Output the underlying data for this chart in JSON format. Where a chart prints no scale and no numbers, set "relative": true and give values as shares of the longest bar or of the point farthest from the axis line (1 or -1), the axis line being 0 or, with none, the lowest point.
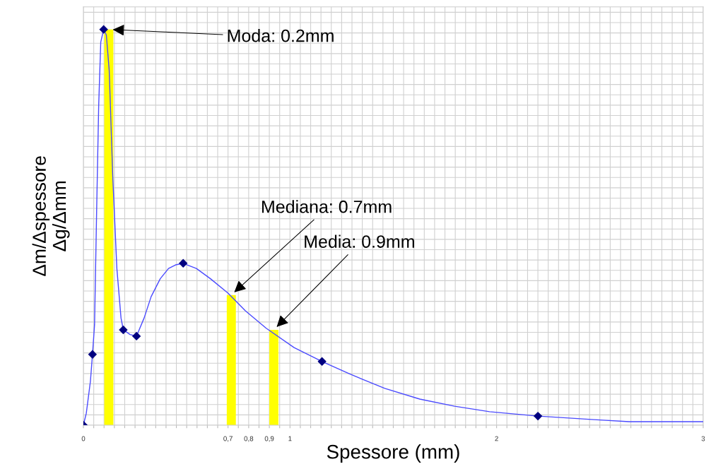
{
  "chart_data": {
    "type": "line",
    "xlabel": "Spessore (mm)",
    "ylabel": "Δm/Δspessore\nΔg/Δmm",
    "relative": true,
    "grid": true,
    "legend": false,
    "xlim": [
      0,
      3
    ],
    "xticks": [
      0,
      {
        "value": 0.05,
        "label": null
      },
      {
        "value": 0.1,
        "label": null
      },
      {
        "value": 0.15,
        "label": null
      },
      {
        "value": 0.2,
        "label": null
      },
      {
        "value": 0.25,
        "label": null
      },
      {
        "value": 0.3,
        "label": null
      },
      {
        "value": 0.35,
        "label": null
      },
      {
        "value": 0.4,
        "label": null
      },
      {
        "value": 0.45,
        "label": null
      },
      {
        "value": 0.5,
        "label": null
      },
      {
        "value": 0.55,
        "label": null
      },
      {
        "value": 0.6,
        "label": null
      },
      {
        "value": 0.65,
        "label": null
      },
      {
        "value": 0.7,
        "label": "0,7"
      },
      {
        "value": 0.75,
        "label": null
      },
      {
        "value": 0.8,
        "label": "0,8"
      },
      {
        "value": 0.85,
        "label": null
      },
      {
        "value": 0.9,
        "label": "0,9"
      },
      {
        "value": 0.95,
        "label": null
      },
      1,
      {
        "value": 1.05,
        "label": null
      },
      {
        "value": 1.1,
        "label": null
      },
      {
        "value": 1.15,
        "label": null
      },
      {
        "value": 1.2,
        "label": null
      },
      {
        "value": 1.25,
        "label": null
      },
      {
        "value": 1.3,
        "label": null
      },
      {
        "value": 1.35,
        "label": null
      },
      {
        "value": 1.4,
        "label": null
      },
      {
        "value": 1.45,
        "label": null
      },
      {
        "value": 1.5,
        "label": null
      },
      {
        "value": 1.55,
        "label": null
      },
      {
        "value": 1.6,
        "label": null
      },
      {
        "value": 1.65,
        "label": null
      },
      {
        "value": 1.7,
        "label": null
      },
      {
        "value": 1.75,
        "label": null
      },
      {
        "value": 1.8,
        "label": null
      },
      {
        "value": 1.85,
        "label": null
      },
      {
        "value": 1.9,
        "label": null
      },
      {
        "value": 1.95,
        "label": null
      },
      2,
      {
        "value": 2.05,
        "label": null
      },
      {
        "value": 2.1,
        "label": null
      },
      {
        "value": 2.15,
        "label": null
      },
      {
        "value": 2.2,
        "label": null
      },
      {
        "value": 2.25,
        "label": null
      },
      {
        "value": 2.3,
        "label": null
      },
      {
        "value": 2.35,
        "label": null
      },
      {
        "value": 2.4,
        "label": null
      },
      {
        "value": 2.45,
        "label": null
      },
      {
        "value": 2.5,
        "label": null
      },
      {
        "value": 2.55,
        "label": null
      },
      {
        "value": 2.6,
        "label": null
      },
      {
        "value": 2.65,
        "label": null
      },
      {
        "value": 2.7,
        "label": null
      },
      {
        "value": 2.75,
        "label": null
      },
      {
        "value": 2.8,
        "label": null
      },
      {
        "value": 2.85,
        "label": null
      },
      {
        "value": 2.9,
        "label": null
      },
      {
        "value": 2.95,
        "label": null
      },
      3
    ],
    "series": [
      {
        "type": "bar",
        "color": "#ffff00",
        "x": [
          0.123,
          0.716,
          0.922
        ],
        "values": [
          1,
          0.329,
          0.241
        ]
      },
      {
        "color": "#4a4aff",
        "marker": "none",
        "x": [
          0,
          0.014,
          0.034,
          0.044,
          0.054,
          0.064,
          0.074,
          0.084,
          0.098,
          0.111,
          0.125,
          0.142,
          0.162,
          0.182,
          0.193,
          0.226,
          0.257,
          0.294,
          0.328,
          0.372,
          0.412,
          0.446,
          0.483,
          0.547,
          0.615,
          0.699,
          0.784,
          0.885,
          1.02,
          1.155,
          1.291,
          1.459,
          1.628,
          1.797,
          1.966,
          2.2,
          2.473,
          2.642,
          3
        ],
        "values": [
          0,
          0.03,
          0.111,
          0.179,
          0.254,
          0.539,
          0.807,
          0.968,
          1,
          0.986,
          0.896,
          0.629,
          0.396,
          0.271,
          0.241,
          0.229,
          0.225,
          0.271,
          0.325,
          0.37,
          0.396,
          0.405,
          0.409,
          0.396,
          0.37,
          0.334,
          0.289,
          0.245,
          0.196,
          0.161,
          0.129,
          0.093,
          0.066,
          0.048,
          0.034,
          0.023,
          0.014,
          0.009,
          0.009
        ]
      },
      {
        "type": "scatter",
        "color": "#000080",
        "marker": "diamond",
        "x": [
          0,
          0.044,
          0.098,
          0.193,
          0.257,
          0.483,
          1.155,
          2.2
        ],
        "values": [
          0,
          0.179,
          1,
          0.241,
          0.225,
          0.409,
          0.161,
          0.023
        ]
      }
    ],
    "annotations": [
      {
        "text": "Moda: 0.2mm",
        "x": 0.123,
        "y": 1
      },
      {
        "text": "Mediana: 0.7mm",
        "x": 0.716,
        "y": 0.329
      },
      {
        "text": "Media: 0.9mm",
        "x": 0.922,
        "y": 0.241
      }
    ]
  }
}
